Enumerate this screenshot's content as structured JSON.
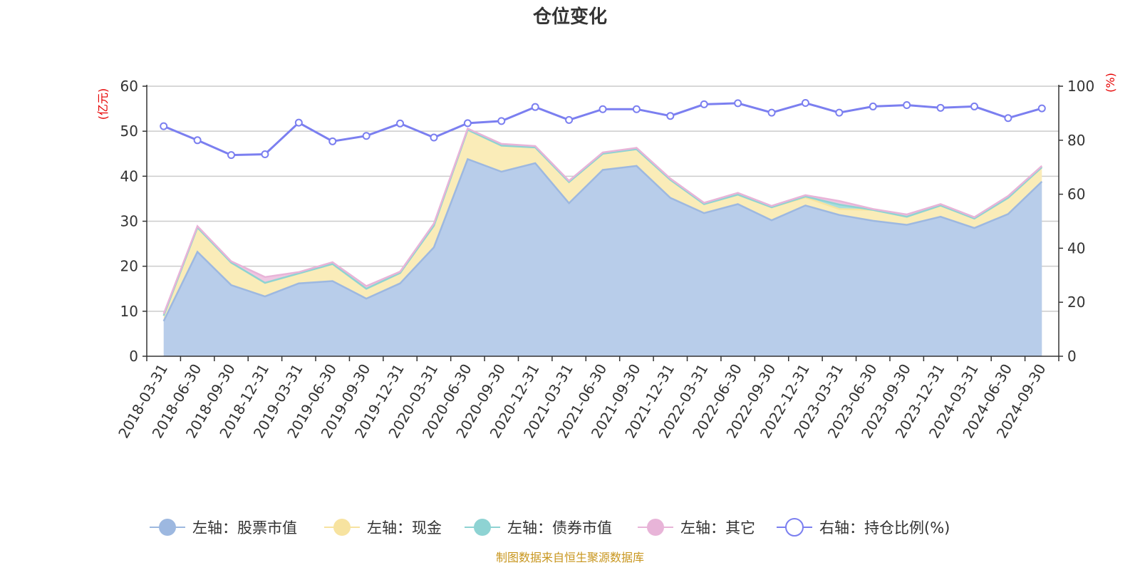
{
  "chart_data": {
    "type": "area",
    "title": "仓位变化",
    "left_unit": "(亿元)",
    "right_unit": "(%)",
    "left_ylim": [
      0,
      60
    ],
    "left_ticks": [
      0,
      10,
      20,
      30,
      40,
      50,
      60
    ],
    "right_ylim": [
      0,
      100
    ],
    "right_ticks": [
      0,
      20,
      40,
      60,
      80,
      100
    ],
    "categories": [
      "2018-03-31",
      "2018-06-30",
      "2018-09-30",
      "2018-12-31",
      "2019-03-31",
      "2019-06-30",
      "2019-09-30",
      "2019-12-31",
      "2020-03-31",
      "2020-06-30",
      "2020-09-30",
      "2020-12-31",
      "2021-03-31",
      "2021-06-30",
      "2021-09-30",
      "2021-12-31",
      "2022-03-31",
      "2022-06-30",
      "2022-09-30",
      "2022-12-31",
      "2023-03-31",
      "2023-06-30",
      "2023-09-30",
      "2023-12-31",
      "2024-03-31",
      "2024-06-30",
      "2024-09-30"
    ],
    "series": [
      {
        "name": "左轴：股票市值",
        "axis": "left",
        "color": "#9db8e0",
        "fill": "#b8cdea",
        "values": [
          7.8,
          23.2,
          15.8,
          13.3,
          16.2,
          16.7,
          12.8,
          16.2,
          24.2,
          43.8,
          41.0,
          42.9,
          34.0,
          41.4,
          42.3,
          35.2,
          31.8,
          33.8,
          30.2,
          33.5,
          31.4,
          30.1,
          29.2,
          31.0,
          28.5,
          31.6,
          38.8
        ]
      },
      {
        "name": "左轴：现金",
        "axis": "left",
        "color": "#f7e3a0",
        "fill": "#faecb8",
        "values": [
          1.2,
          5.4,
          5.0,
          3.0,
          2.2,
          3.8,
          2.2,
          2.3,
          4.8,
          6.5,
          5.8,
          3.5,
          4.7,
          3.6,
          3.7,
          4.0,
          2.0,
          2.1,
          2.9,
          1.8,
          1.3,
          2.4,
          1.8,
          2.5,
          2.1,
          3.6,
          3.2
        ]
      },
      {
        "name": "左轴：债券市值",
        "axis": "left",
        "color": "#8ed3d3",
        "fill": "#a8dede",
        "values": [
          0,
          0,
          0,
          0,
          0,
          0,
          0,
          0,
          0,
          0,
          0,
          0,
          0,
          0,
          0,
          0,
          0,
          0,
          0,
          0.2,
          1.0,
          0,
          0,
          0,
          0,
          0,
          0
        ]
      },
      {
        "name": "左轴：其它",
        "axis": "left",
        "color": "#e8b4d8",
        "fill": "#efc6e2",
        "values": [
          0.4,
          0.3,
          0.3,
          1.3,
          0.3,
          0.4,
          0.6,
          0.3,
          0.5,
          0.3,
          0.4,
          0.3,
          0.3,
          0.3,
          0.3,
          0.3,
          0.3,
          0.4,
          0.3,
          0.3,
          0.8,
          0.2,
          0.5,
          0.3,
          0.3,
          0.4,
          0.3
        ]
      },
      {
        "name": "右轴：持仓比例(%)",
        "axis": "right",
        "color": "#7b7ff0",
        "values": [
          85.2,
          80.0,
          74.5,
          74.8,
          86.5,
          79.6,
          81.6,
          86.2,
          81.0,
          86.3,
          87.1,
          92.3,
          87.5,
          91.5,
          91.5,
          89.0,
          93.3,
          93.7,
          90.2,
          93.8,
          90.2,
          92.5,
          93.0,
          92.0,
          92.5,
          88.2,
          91.8
        ]
      }
    ]
  },
  "source_text": "制图数据来自恒生聚源数据库"
}
